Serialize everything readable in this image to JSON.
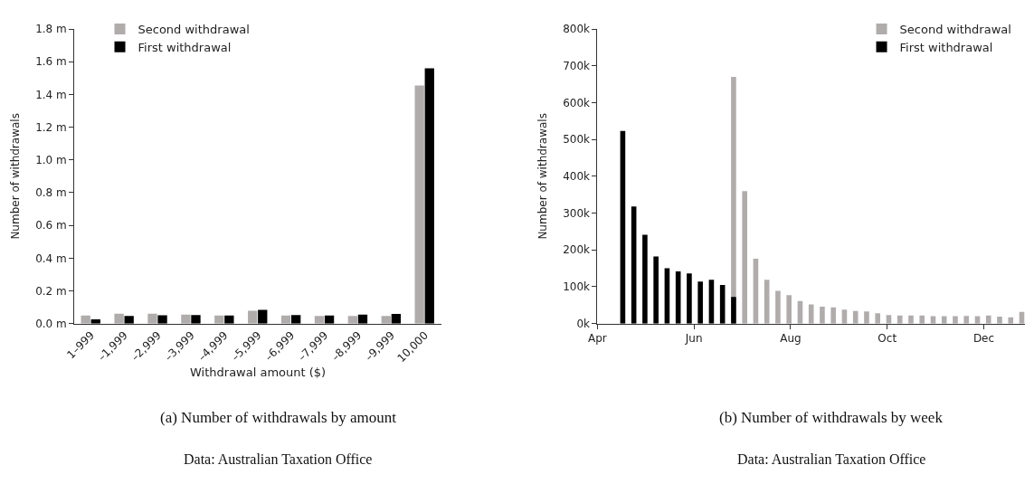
{
  "chart_data": [
    {
      "type": "bar",
      "title": "(a) Number of withdrawals by amount",
      "xlabel": "Withdrawal amount ($)",
      "ylabel": "Number of withdrawals",
      "categories": [
        "1–999",
        "–1,999",
        "–2,999",
        "–3,999",
        "–4,999",
        "–5,999",
        "–6,999",
        "–7,999",
        "–8,999",
        "–9,999",
        "10,000"
      ],
      "series": [
        {
          "name": "Second withdrawal",
          "color": "#b0acac",
          "values": [
            0.05,
            0.06,
            0.06,
            0.055,
            0.05,
            0.079,
            0.05,
            0.047,
            0.047,
            0.047,
            1.455
          ]
        },
        {
          "name": "First withdrawal",
          "color": "#000000",
          "values": [
            0.026,
            0.046,
            0.051,
            0.052,
            0.05,
            0.084,
            0.052,
            0.05,
            0.055,
            0.059,
            1.56
          ]
        }
      ],
      "ylim": [
        0,
        1.8
      ],
      "yticks": [
        {
          "value": 0,
          "label": "0.0 m"
        },
        {
          "value": 0.2,
          "label": "0.2 m"
        },
        {
          "value": 0.4,
          "label": "0.4 m"
        },
        {
          "value": 0.6,
          "label": "0.6 m"
        },
        {
          "value": 0.8,
          "label": "0.8 m"
        },
        {
          "value": 1.0,
          "label": "1.0 m"
        },
        {
          "value": 1.2,
          "label": "1.2 m"
        },
        {
          "value": 1.4,
          "label": "1.4 m"
        },
        {
          "value": 1.6,
          "label": "1.6 m"
        },
        {
          "value": 1.8,
          "label": "1.8 m"
        }
      ],
      "legend": "top left",
      "annotations": [
        "Data: Australian Taxation Office"
      ]
    },
    {
      "type": "bar",
      "title": "(b) Number of withdrawals by week",
      "ylabel": "Number of withdrawals",
      "series": [
        {
          "name": "Second withdrawal",
          "color": "#b0acac",
          "x": [
            "--06-26",
            "--07-03",
            "--07-10",
            "--07-17",
            "--07-24",
            "--07-31",
            "--08-07",
            "--08-14",
            "--08-21",
            "--08-28",
            "--09-04",
            "--09-11",
            "--09-18",
            "--09-25",
            "--10-02",
            "--10-09",
            "--10-16",
            "--10-23",
            "--10-30",
            "--11-06",
            "--11-13",
            "--11-20",
            "--11-27",
            "--12-04",
            "--12-11",
            "--12-18",
            "--12-25"
          ],
          "values": [
            670,
            360,
            176,
            119,
            89,
            77,
            61,
            52,
            46,
            44,
            38,
            34,
            33,
            28,
            23,
            22,
            22,
            22,
            20,
            20,
            20,
            21,
            20,
            22,
            19,
            17,
            32
          ]
        },
        {
          "name": "First withdrawal",
          "color": "#000000",
          "x": [
            "--04-17",
            "--04-24",
            "--05-01",
            "--05-08",
            "--05-15",
            "--05-22",
            "--05-29",
            "--06-05",
            "--06-12",
            "--06-19",
            "--06-26"
          ],
          "values": [
            523,
            318,
            241,
            182,
            150,
            142,
            136,
            114,
            119,
            105,
            72
          ]
        }
      ],
      "xlim": [
        "--04-01",
        "--12-27"
      ],
      "xticks": [
        {
          "value": "--04-01",
          "label": "Apr"
        },
        {
          "value": "--06-01",
          "label": "Jun"
        },
        {
          "value": "--08-01",
          "label": "Aug"
        },
        {
          "value": "--10-01",
          "label": "Oct"
        },
        {
          "value": "--12-01",
          "label": "Dec"
        }
      ],
      "ylim": [
        0,
        800
      ],
      "yticks": [
        {
          "value": 0,
          "label": "0k"
        },
        {
          "value": 100,
          "label": "100k"
        },
        {
          "value": 200,
          "label": "200k"
        },
        {
          "value": 300,
          "label": "300k"
        },
        {
          "value": 400,
          "label": "400k"
        },
        {
          "value": 500,
          "label": "500k"
        },
        {
          "value": 600,
          "label": "600k"
        },
        {
          "value": 700,
          "label": "700k"
        },
        {
          "value": 800,
          "label": "800k"
        }
      ],
      "legend": "top right",
      "annotations": [
        "Data: Australian Taxation Office"
      ]
    }
  ]
}
